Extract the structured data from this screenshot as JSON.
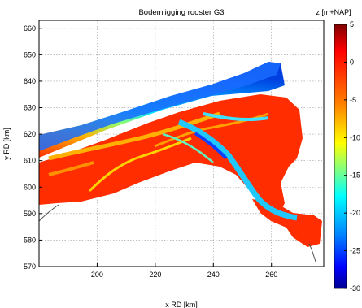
{
  "chart_data": {
    "type": "heatmap",
    "title": "Bodemligging rooster G3",
    "xlabel": "x RD [km]",
    "ylabel": "y RD [km]",
    "xlim": [
      180,
      278
    ],
    "ylim": [
      570,
      663
    ],
    "xticks": [
      200,
      220,
      240,
      260
    ],
    "yticks": [
      570,
      580,
      590,
      600,
      610,
      620,
      630,
      640,
      650,
      660
    ],
    "grid": true,
    "colorbar": {
      "label": "z [m+NAP]",
      "range": [
        -30,
        5
      ],
      "ticks": [
        5,
        0,
        -5,
        -10,
        -15,
        -20,
        -25,
        -30
      ],
      "tick_labels": [
        "5",
        "0",
        "-5",
        "-10",
        "-15",
        "-20",
        "-25",
        "-30"
      ],
      "colormap": "jet"
    },
    "field_description_values": {
      "shallow_area_z": 2,
      "deep_sea_z": -22,
      "channel_z": -16
    }
  }
}
